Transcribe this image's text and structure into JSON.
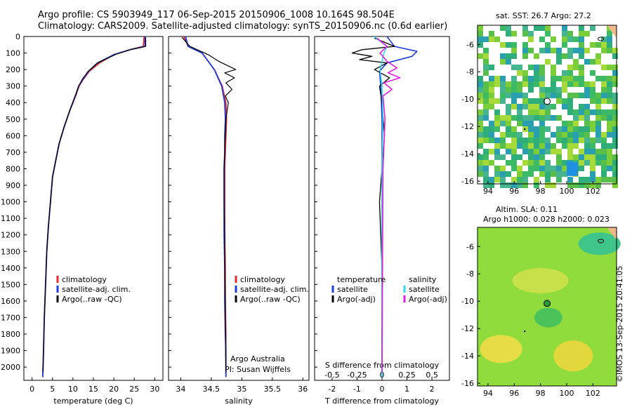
{
  "header": {
    "line1": "Argo profile: CS 5903949_117 06-Sep-2015 20150906_1008 10.164S 98.504E",
    "line2": "Climatology: CARS2009. Satellite-adjusted climatology: synTS_20150906.nc (0.6d earlier)"
  },
  "colors": {
    "climatology": "#e8282e",
    "satellite_adj": "#1e3cdc",
    "argo": "#000000",
    "sat_diff_salinity": "#33d7f0",
    "argo_diff_salinity": "#e020e0"
  },
  "chart_data": [
    {
      "type": "line",
      "title": "",
      "xlabel": "temperature (deg C)",
      "ylabel": "",
      "xlim": [
        -2,
        32
      ],
      "ylim": [
        2080,
        0
      ],
      "xticks": [
        0,
        5,
        10,
        15,
        20,
        25,
        30
      ],
      "yticks": [
        0,
        100,
        200,
        300,
        400,
        500,
        600,
        700,
        800,
        900,
        1000,
        1100,
        1200,
        1300,
        1400,
        1500,
        1600,
        1700,
        1800,
        1900,
        2000
      ],
      "legend": [
        "climatology",
        "satellite-adj. clim.",
        "Argo(..raw -QC)"
      ],
      "series": [
        {
          "name": "climatology",
          "x": [
            27.4,
            27.2,
            24,
            20,
            16.5,
            14,
            12.5,
            11.5,
            10.8,
            9.2,
            7.8,
            6.6,
            5.8,
            5.0,
            4.5,
            4.0,
            3.6,
            3.3,
            3.0,
            2.8,
            2.6
          ],
          "depth": [
            0,
            60,
            80,
            110,
            160,
            210,
            260,
            300,
            350,
            450,
            550,
            650,
            750,
            850,
            1000,
            1150,
            1300,
            1500,
            1700,
            1900,
            2060
          ]
        },
        {
          "name": "satellite-adj. clim.",
          "x": [
            27.6,
            27.6,
            24,
            20,
            16.0,
            13.8,
            12.4,
            11.4,
            10.7,
            9.2,
            7.8,
            6.6,
            5.8,
            5.0,
            4.5,
            4.0,
            3.6,
            3.3,
            3.0,
            2.8,
            2.6
          ],
          "depth": [
            0,
            60,
            80,
            110,
            160,
            210,
            260,
            300,
            350,
            450,
            550,
            650,
            750,
            850,
            1000,
            1150,
            1300,
            1500,
            1700,
            1900,
            2060
          ]
        },
        {
          "name": "Argo(..raw -QC)",
          "x": [
            27.8,
            27.8,
            24.2,
            20.5,
            16.2,
            13.8,
            12.3,
            11.4,
            10.7,
            9.2,
            7.8,
            6.6,
            5.8,
            5.0,
            4.5,
            4.0,
            3.6,
            3.3,
            3.0,
            2.8,
            2.7
          ],
          "depth": [
            5,
            60,
            78,
            108,
            158,
            208,
            258,
            300,
            350,
            450,
            550,
            650,
            750,
            850,
            1000,
            1150,
            1300,
            1500,
            1700,
            1900,
            2030
          ]
        }
      ]
    },
    {
      "type": "line",
      "title": "",
      "xlabel": "salinity",
      "ylabel": "",
      "xlim": [
        33.8,
        36.1
      ],
      "ylim": [
        2080,
        0
      ],
      "xticks": [
        34,
        34.5,
        35,
        35.5,
        36
      ],
      "legend": [
        "climatology",
        "satellite-adj. clim.",
        "Argo(..raw -QC)"
      ],
      "annotation": [
        "Argo Australia",
        "PI: Susan Wijffels"
      ],
      "series": [
        {
          "name": "climatology",
          "x": [
            34.05,
            34.12,
            34.35,
            34.55,
            34.68,
            34.74,
            34.75,
            34.74,
            34.73,
            34.72,
            34.72,
            34.72,
            34.73,
            34.73,
            34.74,
            34.74,
            34.74
          ],
          "depth": [
            0,
            60,
            100,
            200,
            300,
            400,
            500,
            600,
            700,
            800,
            1000,
            1200,
            1400,
            1600,
            1800,
            1900,
            2060
          ]
        },
        {
          "name": "satellite-adj. clim.",
          "x": [
            34.08,
            34.12,
            34.35,
            34.55,
            34.67,
            34.72,
            34.73,
            34.72,
            34.72,
            34.71,
            34.71,
            34.71,
            34.72,
            34.72,
            34.73,
            34.74,
            34.74
          ],
          "depth": [
            0,
            60,
            100,
            200,
            300,
            400,
            500,
            600,
            700,
            800,
            1000,
            1200,
            1400,
            1600,
            1800,
            1900,
            2060
          ]
        },
        {
          "name": "Argo(..raw -QC)",
          "x": [
            34.02,
            34.15,
            34.45,
            34.62,
            34.9,
            34.72,
            34.88,
            34.74,
            34.84,
            34.73,
            34.78,
            34.74,
            34.73,
            34.72,
            34.71,
            34.71,
            34.72,
            34.72,
            34.73,
            34.73,
            34.74
          ],
          "depth": [
            5,
            60,
            110,
            150,
            200,
            220,
            250,
            280,
            320,
            360,
            400,
            500,
            600,
            700,
            800,
            1000,
            1200,
            1400,
            1600,
            1800,
            2030
          ]
        }
      ]
    },
    {
      "type": "line",
      "title": "",
      "xlabel": "T difference from climatology",
      "secondary_xlabel": "S difference from climatology",
      "xlim": [
        -2.7,
        2.7
      ],
      "ylim": [
        2080,
        0
      ],
      "xticks": [
        -2,
        -1,
        0,
        1,
        2
      ],
      "xticks_secondary": [
        "-0.5",
        "-0.25",
        "0",
        "0.25",
        "0.5"
      ],
      "legend_headers": [
        "temperature",
        "salinity"
      ],
      "legend": [
        "satellite",
        "Argo(-adj)",
        "satellite",
        "Argo(-adj)"
      ],
      "series": [
        {
          "name": "temperature satellite",
          "x": [
            0.2,
            0.5,
            1.4,
            1.2,
            0.2,
            -0.1,
            -0.05,
            0,
            0,
            0,
            0,
            0
          ],
          "depth": [
            0,
            60,
            90,
            120,
            160,
            210,
            300,
            500,
            800,
            1200,
            1600,
            2060
          ]
        },
        {
          "name": "temperature Argo(-adj)",
          "x": [
            -0.3,
            0.5,
            -0.8,
            -1.2,
            -0.4,
            -0.9,
            0.2,
            -0.3,
            0.3,
            -0.1,
            0,
            0.1,
            -0.1,
            0,
            0
          ],
          "depth": [
            10,
            60,
            80,
            100,
            120,
            140,
            160,
            200,
            250,
            300,
            400,
            600,
            1000,
            1400,
            2030
          ]
        },
        {
          "name": "salinity satellite",
          "x": [
            -0.08,
            0.05,
            0.02,
            -0.02,
            0,
            0.01,
            0,
            0,
            0,
            0
          ],
          "depth": [
            0,
            60,
            100,
            200,
            300,
            500,
            800,
            1200,
            1600,
            2060
          ]
        },
        {
          "name": "salinity Argo(-adj)",
          "x": [
            -0.05,
            0.05,
            -0.02,
            0.05,
            0.15,
            0.06,
            0.18,
            0.02,
            0.1,
            0.01,
            0.03,
            0.01,
            0
          ],
          "depth": [
            10,
            60,
            100,
            150,
            190,
            220,
            250,
            280,
            320,
            360,
            500,
            800,
            2030
          ]
        }
      ]
    },
    {
      "type": "heatmap",
      "title": "sat. SST: 26.7  Argo: 27.2",
      "xticks": [
        94,
        96,
        98,
        100,
        102
      ],
      "yticks": [
        -6,
        -8,
        -10,
        -12,
        -14,
        -16
      ],
      "marker": {
        "lon": 98.504,
        "lat": -10.164
      }
    },
    {
      "type": "heatmap",
      "title": "Altim. SLA: 0.11",
      "subtitle": "Argo h1000: 0.028 h2000: 0.023",
      "xticks": [
        94,
        96,
        98,
        100,
        102
      ],
      "yticks": [
        -6,
        -8,
        -10,
        -12,
        -14,
        -16
      ],
      "marker": {
        "lon": 98.504,
        "lat": -10.164
      }
    }
  ],
  "footer": {
    "timestamp": "©IMOS 13-Sep-2015 20:41:05"
  }
}
